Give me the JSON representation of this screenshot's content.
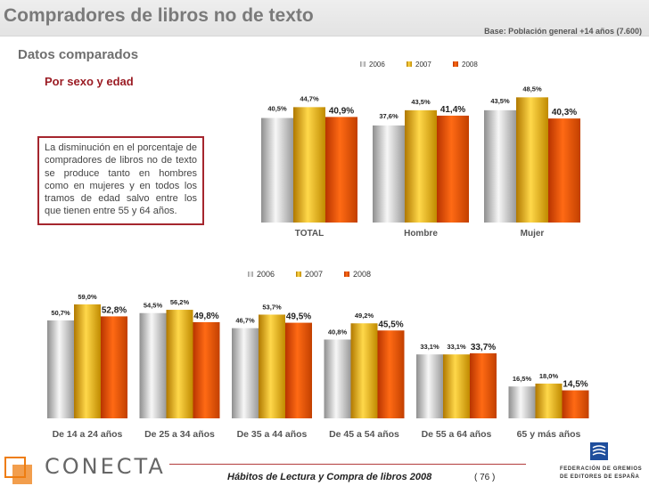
{
  "header": {
    "title": "Compradores de libros no de texto",
    "base": "Base: Población general +14 años (7.600)"
  },
  "subtitle": "Datos comparados",
  "section_title": "Por sexo y edad",
  "note": "La disminución en el porcentaje de compradores de libros no de texto se produce tanto en hombres como en mujeres y en todos los tramos de edad salvo entre los que tienen entre 55 y 64 años.",
  "footer": {
    "publication": "Hábitos de Lectura y Compra de libros 2008",
    "page": "( 76 )",
    "left_logo": "CONECTA",
    "right_logo": "FEDERACIÓN DE GREMIOS DE EDITORES DE ESPAÑA"
  },
  "colors": {
    "2006": "#c8c8c8",
    "2007": "#f0b000",
    "2008": "#e85000"
  },
  "chart_data": [
    {
      "type": "bar",
      "categories": [
        "TOTAL",
        "Hombre",
        "Mujer"
      ],
      "series": [
        {
          "name": "2006",
          "values": [
            40.5,
            37.6,
            43.5
          ],
          "labels": [
            "40,5%",
            "37,6%",
            "43,5%"
          ]
        },
        {
          "name": "2007",
          "values": [
            44.7,
            43.5,
            48.5
          ],
          "labels": [
            "44,7%",
            "43,5%",
            "48,5%"
          ]
        },
        {
          "name": "2008",
          "values": [
            40.9,
            41.4,
            40.3
          ],
          "labels": [
            "40,9%",
            "41,4%",
            "40,3%"
          ]
        }
      ],
      "legend": "top",
      "grid": false
    },
    {
      "type": "bar",
      "categories": [
        "De 14 a 24 años",
        "De 25 a 34 años",
        "De 35 a 44 años",
        "De 45 a 54 años",
        "De 55 a 64 años",
        "65 y más años"
      ],
      "series": [
        {
          "name": "2006",
          "values": [
            50.7,
            54.5,
            46.7,
            40.8,
            33.1,
            16.5
          ],
          "labels": [
            "50,7%",
            "54,5%",
            "46,7%",
            "40,8%",
            "33,1%",
            "16,5%"
          ]
        },
        {
          "name": "2007",
          "values": [
            59.0,
            56.2,
            53.7,
            49.2,
            33.1,
            18.0
          ],
          "labels": [
            "59,0%",
            "56,2%",
            "53,7%",
            "49,2%",
            "33,1%",
            "18,0%"
          ]
        },
        {
          "name": "2008",
          "values": [
            52.8,
            49.8,
            49.5,
            45.5,
            33.7,
            14.5
          ],
          "labels": [
            "52,8%",
            "49,8%",
            "49,5%",
            "45,5%",
            "33,7%",
            "14,5%"
          ]
        }
      ],
      "legend": "top",
      "grid": false
    }
  ]
}
